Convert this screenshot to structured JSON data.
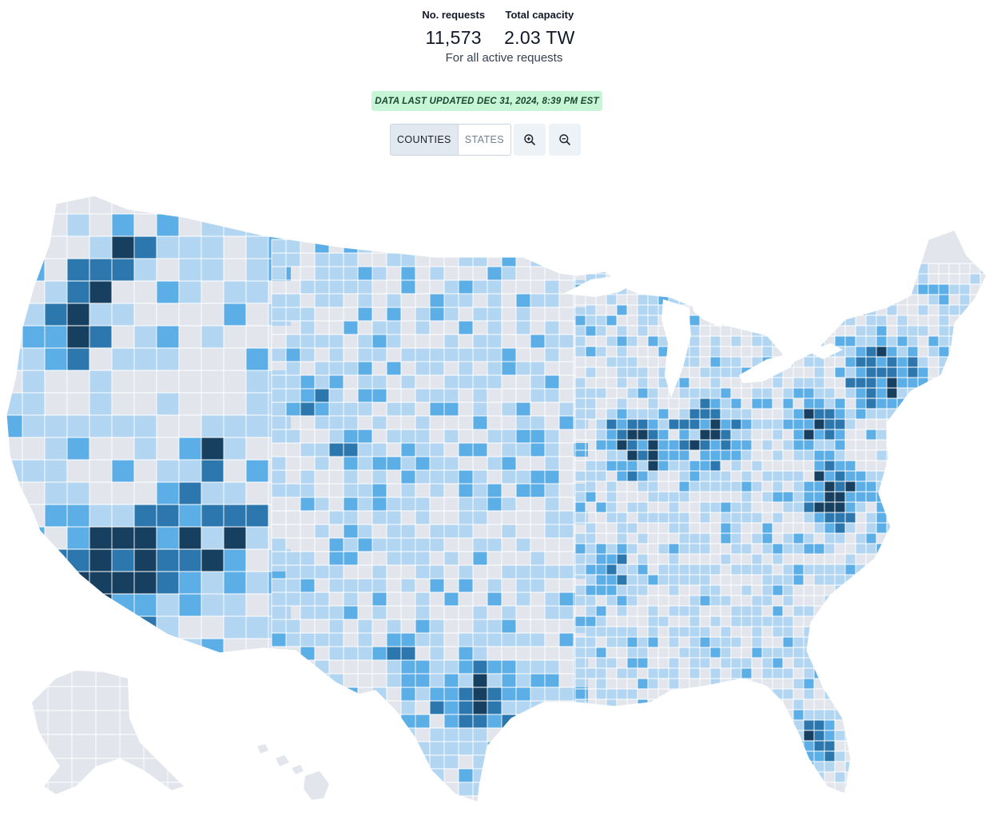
{
  "stats": {
    "requests_label": "No. requests",
    "requests_value": "11,573",
    "capacity_label": "Total capacity",
    "capacity_value": "2.03 TW",
    "subtitle": "For all active requests"
  },
  "updated_banner": "DATA LAST UPDATED DEC 31, 2024, 8:39 PM EST",
  "view_toggle": {
    "counties_label": "COUNTIES",
    "states_label": "STATES",
    "selected": "COUNTIES"
  },
  "zoom": {
    "zoom_in_icon": "zoom-in-icon",
    "zoom_out_icon": "zoom-out-icon"
  },
  "colors": {
    "none": "#e2e6ec",
    "level1": "#b2d6f2",
    "level2": "#5caee6",
    "level3": "#2c78ae",
    "level4": "#173f5f"
  },
  "map": {
    "view": "counties",
    "region": "United States",
    "scale": "choropleth (5 shades of blue)"
  }
}
